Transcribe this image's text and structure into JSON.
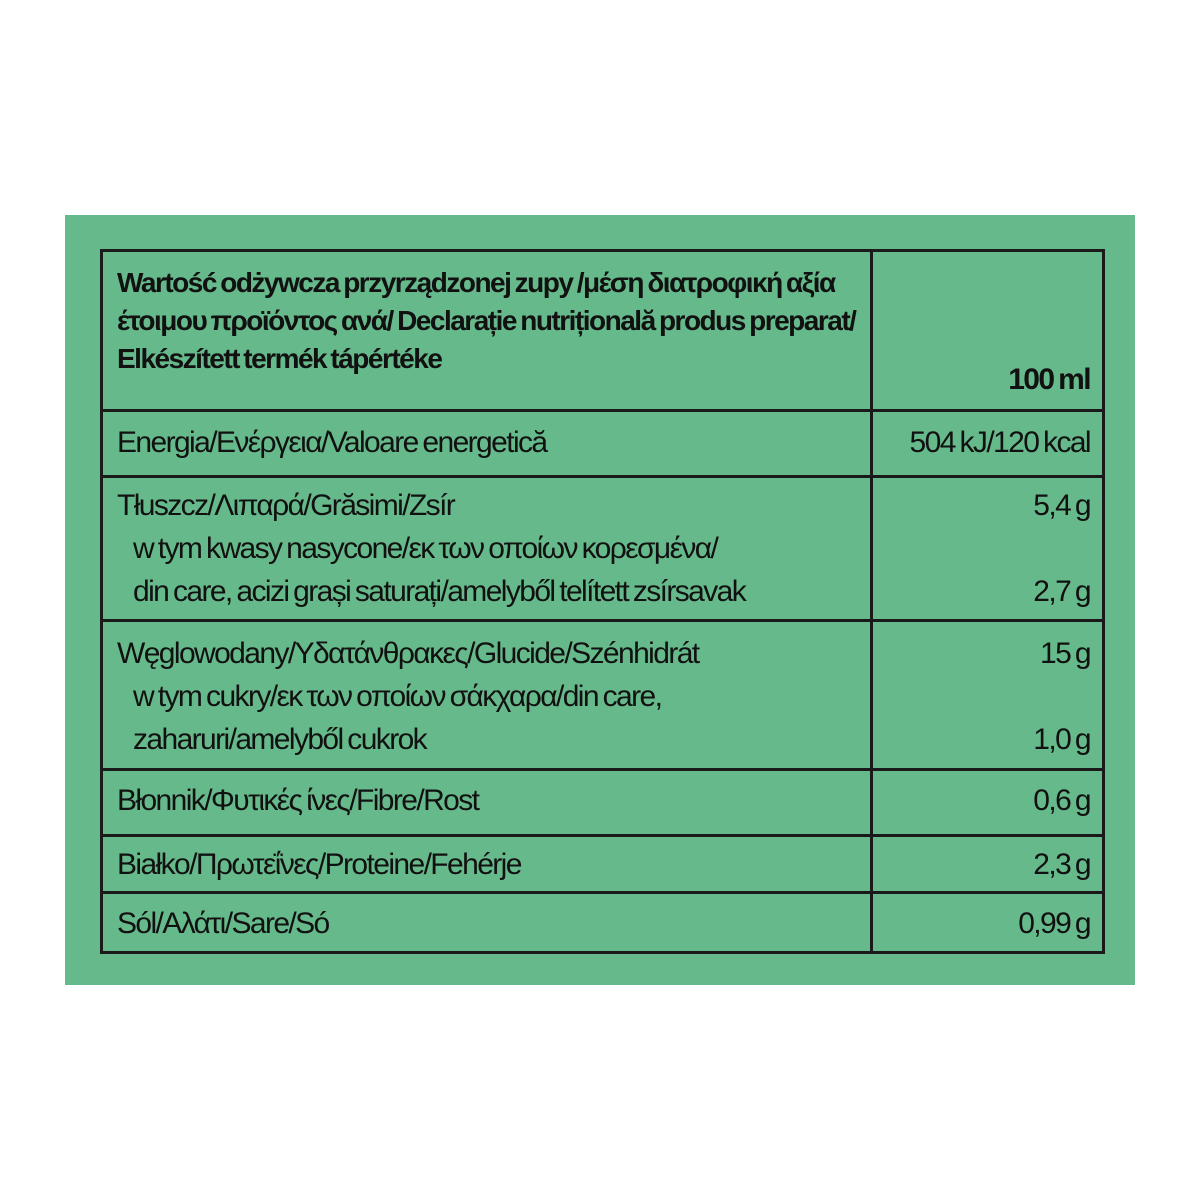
{
  "header": {
    "title_lines": [
      "Wartość odżywcza przyrządzonej zupy /μέση διατροφική αξία",
      "έτοιμου προϊόντος ανά/ Declarație nutrițională produs preparat/",
      "Elkészített termék tápértéke"
    ],
    "unit": "100 ml"
  },
  "rows": [
    {
      "lines": [
        "Energia/Ενέργεια/Valoare energetică"
      ],
      "values": [
        "504 kJ/120 kcal"
      ]
    },
    {
      "lines": [
        "Tłuszcz/Λιπαρά/Grăsimi/Zsír",
        "w tym kwasy nasycone/εκ των οποίων κορεσμένα/",
        "din care, acizi grași saturați/amelyből telített zsírsavak"
      ],
      "values": [
        "5,4 g",
        "2,7 g"
      ]
    },
    {
      "lines": [
        "Węglowodany/Υδατάνθρακες/Glucide/Szénhidrát",
        "w tym cukry/εκ των οποίων σάκχαρα/din care,",
        "zaharuri/amelyből cukrok"
      ],
      "values": [
        "15 g",
        "1,0 g"
      ]
    },
    {
      "lines": [
        "Błonnik/Φυτικές ίνες/Fibre/Rost"
      ],
      "values": [
        "0,6 g"
      ]
    },
    {
      "lines": [
        "Białko/Πρωτεΐνες/Proteine/Fehérje"
      ],
      "values": [
        "2,3 g"
      ]
    },
    {
      "lines": [
        "Sól/Αλάτι/Sare/Só"
      ],
      "values": [
        "0,99 g"
      ]
    }
  ],
  "colors": {
    "background": "#66b98a",
    "border": "#1a1a1a",
    "text": "#111111"
  }
}
